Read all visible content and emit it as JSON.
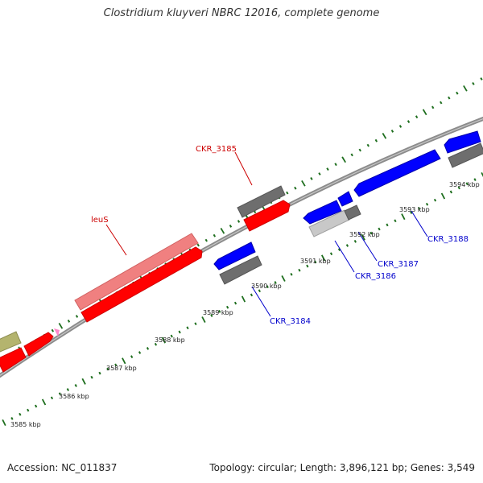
{
  "title": "Clostridium kluyveri NBRC 12016, complete genome",
  "footer": {
    "accession": "Accession: NC_011837",
    "summary": "Topology: circular; Length: 3,896,121 bp; Genes: 3,549"
  },
  "colors": {
    "backbone": "#8c8c8c",
    "tick": "#1e6e1e",
    "forward_gene": "#ff0000",
    "forward_label": "#cc0000",
    "reverse_gene": "#0000ff",
    "reverse_label": "#0000cc",
    "pseudo_gray": "#6e6e6e",
    "light_gray": "#c8c8c8",
    "pink": "#f08080",
    "olive": "#b4b46e",
    "magenta": "#ff88cc"
  },
  "scale_labels": [
    "3585 kbp",
    "3586 kbp",
    "3587 kbp",
    "3588 kbp",
    "3589 kbp",
    "3590 kbp",
    "3591 kbp",
    "3592 kbp",
    "3593 kbp",
    "3594 kbp"
  ],
  "gene_labels": {
    "leuS": "leuS",
    "ckr3185": "CKR_3185",
    "ckr3184": "CKR_3184",
    "ckr3186": "CKR_3186",
    "ckr3187": "CKR_3187",
    "ckr3188": "CKR_3188"
  }
}
